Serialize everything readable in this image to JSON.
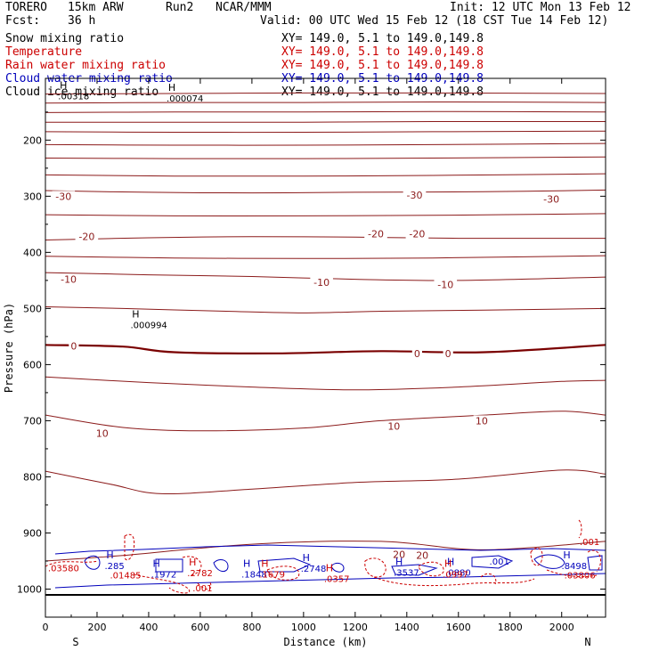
{
  "header": {
    "model": "TORERO",
    "resolution": "15km ARW",
    "run": "Run2",
    "org": "NCAR/MMM",
    "init": "Init: 12 UTC Mon 13 Feb 12",
    "fcst_label": "Fcst:",
    "fcst_value": "36 h",
    "valid": "Valid: 00 UTC Wed 15 Feb 12 (18 CST Tue 14 Feb 12)"
  },
  "fields": [
    {
      "name": "Snow mixing ratio",
      "xy": "XY= 149.0, 5.1 to 149.0,149.8",
      "color": "#000000"
    },
    {
      "name": "Temperature",
      "xy": "XY= 149.0, 5.1 to 149.0,149.8",
      "color": "#cc0000"
    },
    {
      "name": "Rain water mixing ratio",
      "xy": "XY= 149.0, 5.1 to 149.0,149.8",
      "color": "#cc0000"
    },
    {
      "name": "Cloud water mixing ratio",
      "xy": "XY= 149.0, 5.1 to 149.0,149.8",
      "color": "#0000bb"
    },
    {
      "name": "Cloud ice mixing ratio",
      "xy": "XY= 149.0, 5.1 to 149.0,149.8",
      "color": "#000000"
    }
  ],
  "chart_data": {
    "type": "contour",
    "title": "Vertical cross section S-N",
    "xlabel": "Distance (km)",
    "ylabel": "Pressure (hPa)",
    "xlim": [
      0,
      2170
    ],
    "ylim": [
      90,
      1050
    ],
    "x_ticks": [
      0,
      200,
      400,
      600,
      800,
      1000,
      1200,
      1400,
      1600,
      1800,
      2000
    ],
    "y_ticks": [
      200,
      300,
      400,
      500,
      600,
      700,
      800,
      900,
      1000
    ],
    "x_end_labels": {
      "left": "S",
      "right": "N"
    },
    "temperature_contours": [
      {
        "level": -70,
        "pts": [
          [
            0,
            118
          ],
          [
            500,
            117
          ],
          [
            1000,
            116
          ],
          [
            1500,
            116
          ],
          [
            2170,
            117
          ]
        ]
      },
      {
        "level": -65,
        "pts": [
          [
            0,
            134
          ],
          [
            500,
            133
          ],
          [
            1000,
            133
          ],
          [
            1500,
            132
          ],
          [
            2170,
            133
          ]
        ]
      },
      {
        "level": -60,
        "pts": [
          [
            0,
            151
          ],
          [
            500,
            150
          ],
          [
            1000,
            150
          ],
          [
            1500,
            149
          ],
          [
            2170,
            150
          ]
        ]
      },
      {
        "level": -55,
        "pts": [
          [
            0,
            168
          ],
          [
            500,
            168
          ],
          [
            1000,
            168
          ],
          [
            1500,
            167
          ],
          [
            2170,
            167
          ]
        ]
      },
      {
        "level": -50,
        "pts": [
          [
            0,
            185
          ],
          [
            500,
            186
          ],
          [
            1000,
            186
          ],
          [
            1500,
            185
          ],
          [
            2170,
            184
          ]
        ]
      },
      {
        "level": -45,
        "pts": [
          [
            0,
            208
          ],
          [
            500,
            209
          ],
          [
            1000,
            209
          ],
          [
            1500,
            208
          ],
          [
            2170,
            206
          ]
        ]
      },
      {
        "level": -40,
        "pts": [
          [
            0,
            232
          ],
          [
            500,
            233
          ],
          [
            1000,
            233
          ],
          [
            1500,
            232
          ],
          [
            2170,
            230
          ]
        ]
      },
      {
        "level": -35,
        "pts": [
          [
            0,
            262
          ],
          [
            500,
            264
          ],
          [
            1000,
            264
          ],
          [
            1500,
            263
          ],
          [
            2170,
            260
          ]
        ]
      },
      {
        "level": -30,
        "pts": [
          [
            0,
            290
          ],
          [
            400,
            293
          ],
          [
            800,
            294
          ],
          [
            1200,
            293
          ],
          [
            1700,
            292
          ],
          [
            2170,
            289
          ]
        ]
      },
      {
        "level": -25,
        "pts": [
          [
            0,
            333
          ],
          [
            500,
            335
          ],
          [
            1000,
            335
          ],
          [
            1500,
            334
          ],
          [
            2170,
            331
          ]
        ]
      },
      {
        "level": -20,
        "pts": [
          [
            0,
            378
          ],
          [
            400,
            374
          ],
          [
            800,
            372
          ],
          [
            1200,
            373
          ],
          [
            1600,
            375
          ],
          [
            2170,
            375
          ]
        ]
      },
      {
        "level": -15,
        "pts": [
          [
            0,
            407
          ],
          [
            500,
            410
          ],
          [
            1000,
            411
          ],
          [
            1500,
            410
          ],
          [
            2170,
            406
          ]
        ]
      },
      {
        "level": -10,
        "pts": [
          [
            0,
            436
          ],
          [
            400,
            440
          ],
          [
            800,
            443
          ],
          [
            1200,
            448
          ],
          [
            1600,
            450
          ],
          [
            2170,
            444
          ]
        ]
      },
      {
        "level": -5,
        "pts": [
          [
            0,
            497
          ],
          [
            300,
            500
          ],
          [
            700,
            505
          ],
          [
            1000,
            508
          ],
          [
            1300,
            505
          ],
          [
            1700,
            503
          ],
          [
            2170,
            500
          ]
        ]
      },
      {
        "level": 0,
        "pts": [
          [
            0,
            565
          ],
          [
            300,
            568
          ],
          [
            500,
            578
          ],
          [
            900,
            580
          ],
          [
            1300,
            576
          ],
          [
            1700,
            578
          ],
          [
            2170,
            565
          ]
        ]
      },
      {
        "level": 5,
        "pts": [
          [
            0,
            622
          ],
          [
            400,
            632
          ],
          [
            800,
            640
          ],
          [
            1200,
            645
          ],
          [
            1600,
            640
          ],
          [
            2000,
            630
          ],
          [
            2170,
            628
          ]
        ]
      },
      {
        "level": 10,
        "pts": [
          [
            0,
            690
          ],
          [
            300,
            712
          ],
          [
            600,
            718
          ],
          [
            1000,
            713
          ],
          [
            1300,
            700
          ],
          [
            1700,
            690
          ],
          [
            2000,
            683
          ],
          [
            2170,
            690
          ]
        ]
      },
      {
        "level": 15,
        "pts": [
          [
            0,
            790
          ],
          [
            250,
            813
          ],
          [
            450,
            830
          ],
          [
            800,
            822
          ],
          [
            1200,
            810
          ],
          [
            1600,
            804
          ],
          [
            2000,
            788
          ],
          [
            2170,
            795
          ]
        ]
      },
      {
        "level": 20,
        "pts": [
          [
            0,
            950
          ],
          [
            300,
            940
          ],
          [
            800,
            920
          ],
          [
            1300,
            915
          ],
          [
            1700,
            930
          ],
          [
            2170,
            915
          ]
        ]
      }
    ],
    "temperature_labels": [
      {
        "text": "-30",
        "x": 70,
        "p": 300
      },
      {
        "text": "-30",
        "x": 1430,
        "p": 298
      },
      {
        "text": "-30",
        "x": 1960,
        "p": 305
      },
      {
        "text": "-20",
        "x": 160,
        "p": 372
      },
      {
        "text": "-20",
        "x": 1280,
        "p": 367
      },
      {
        "text": "-20",
        "x": 1440,
        "p": 367
      },
      {
        "text": "-10",
        "x": 90,
        "p": 448
      },
      {
        "text": "-10",
        "x": 1070,
        "p": 453
      },
      {
        "text": "-10",
        "x": 1550,
        "p": 457
      },
      {
        "text": "0",
        "x": 110,
        "p": 567
      },
      {
        "text": "0",
        "x": 1440,
        "p": 580
      },
      {
        "text": "0",
        "x": 1560,
        "p": 580
      },
      {
        "text": "10",
        "x": 220,
        "p": 722
      },
      {
        "text": "10",
        "x": 1350,
        "p": 710
      },
      {
        "text": "10",
        "x": 1690,
        "p": 700
      },
      {
        "text": "20",
        "x": 1370,
        "p": 938
      },
      {
        "text": "20",
        "x": 1460,
        "p": 940
      }
    ],
    "max_labels": [
      {
        "text": "H",
        "x": 350,
        "p": 516,
        "value": ".000994",
        "color": "#000000"
      },
      {
        "text": "H",
        "x": 490,
        "p": 112,
        "value": ".000074",
        "color": "#000000"
      },
      {
        "text": "H",
        "x": 70,
        "p": 108,
        "value": ".00318",
        "color": "#000000"
      },
      {
        "text": "H",
        "x": 250,
        "p": 945,
        "value": ".285",
        "color": "#0000bb"
      },
      {
        "text": "H",
        "x": 430,
        "p": 960,
        "value": ".1972",
        "color": "#0000bb"
      },
      {
        "text": "H",
        "x": 780,
        "p": 960,
        "value": ".1848",
        "color": "#0000bb"
      },
      {
        "text": "H",
        "x": 1010,
        "p": 950,
        "value": ".2748",
        "color": "#0000bb"
      },
      {
        "text": "H",
        "x": 1370,
        "p": 957,
        "value": ".3537",
        "color": "#0000bb"
      },
      {
        "text": "H",
        "x": 1570,
        "p": 957,
        "value": ".0880",
        "color": "#0000bb"
      },
      {
        "text": "H",
        "x": 2020,
        "p": 945,
        "value": ".8498",
        "color": "#0000bb"
      },
      {
        "text": "H",
        "x": 570,
        "p": 958,
        "value": ".2782",
        "color": "#cc0000"
      },
      {
        "text": "H",
        "x": 850,
        "p": 960,
        "value": ".1679",
        "color": "#cc0000"
      },
      {
        "text": "H",
        "x": 1100,
        "p": 968,
        "value": ".0357",
        "color": "#cc0000"
      },
      {
        "text": "H",
        "x": 1560,
        "p": 960,
        "value": ".0997",
        "color": "#cc0000"
      }
    ],
    "extra_labels": [
      {
        "text": ".03580",
        "x": 10,
        "p": 962,
        "color": "#cc0000"
      },
      {
        "text": ".01485",
        "x": 250,
        "p": 975,
        "color": "#cc0000"
      },
      {
        "text": ".001",
        "x": 570,
        "p": 998,
        "color": "#cc0000"
      },
      {
        "text": ".001",
        "x": 1720,
        "p": 950,
        "color": "#0000bb"
      },
      {
        "text": ".03806",
        "x": 2010,
        "p": 975,
        "color": "#cc0000"
      },
      {
        "text": ".001",
        "x": 2070,
        "p": 915,
        "color": "#cc0000"
      }
    ]
  }
}
